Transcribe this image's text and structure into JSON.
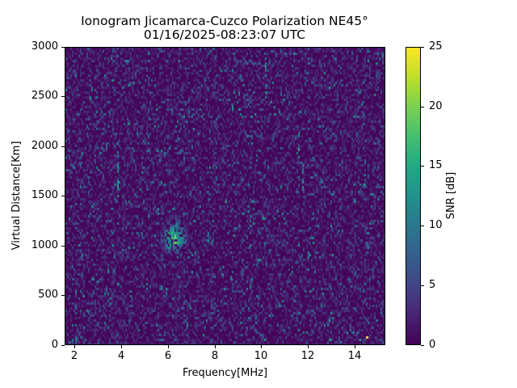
{
  "header": {
    "title_line1": "Ionogram Jicamarca-Cuzco Polarization NE45°",
    "title_line2": "01/16/2025-08:23:07 UTC"
  },
  "axes": {
    "xlabel": "Frequency[MHz]",
    "ylabel": "Virtual Distance[Km]",
    "xticks": [
      "2",
      "4",
      "6",
      "8",
      "10",
      "12",
      "14"
    ],
    "yticks": [
      "0",
      "500",
      "1000",
      "1500",
      "2000",
      "2500",
      "3000"
    ]
  },
  "colorbar": {
    "label": "SNR [dB]",
    "ticks": [
      "0",
      "5",
      "10",
      "15",
      "20",
      "25"
    ]
  },
  "chart_data": {
    "type": "heatmap",
    "title": "Ionogram Jicamarca-Cuzco Polarization NE45° 01/16/2025-08:23:07 UTC",
    "xlabel": "Frequency[MHz]",
    "ylabel": "Virtual Distance[Km]",
    "xlim": [
      1.6,
      15.2
    ],
    "ylim": [
      0,
      3000
    ],
    "xticks": [
      2,
      4,
      6,
      8,
      10,
      12,
      14
    ],
    "yticks": [
      0,
      500,
      1000,
      1500,
      2000,
      2500,
      3000
    ],
    "colorbar": {
      "label": "SNR [dB]",
      "range": [
        0,
        25
      ],
      "ticks": [
        0,
        5,
        10,
        15,
        20,
        25
      ],
      "colormap": "viridis"
    },
    "grid": false,
    "background_noise_snr_db": [
      0,
      8
    ],
    "features": [
      {
        "name": "echo-cluster",
        "freq_mhz": [
          5.6,
          6.8
        ],
        "distance_km": [
          950,
          1300
        ],
        "center": [
          6.2,
          1050
        ],
        "peak_snr_db": 22
      },
      {
        "name": "vertical-streak",
        "freq_mhz": 10.1,
        "distance_km": [
          2500,
          2950
        ],
        "peak_snr_db": 14
      },
      {
        "name": "vertical-streak",
        "freq_mhz": 11.5,
        "distance_km": [
          1850,
          2100
        ],
        "peak_snr_db": 16
      },
      {
        "name": "vertical-streak",
        "freq_mhz": 11.7,
        "distance_km": [
          1550,
          1850
        ],
        "peak_snr_db": 15
      },
      {
        "name": "vertical-streak",
        "freq_mhz": 3.8,
        "distance_km": [
          1500,
          1950
        ],
        "peak_snr_db": 14
      },
      {
        "name": "vertical-streak",
        "freq_mhz": 2.0,
        "distance_km": [
          0,
          600
        ],
        "peak_snr_db": 12
      },
      {
        "name": "vertical-streak",
        "freq_mhz": 9.7,
        "distance_km": [
          100,
          300
        ],
        "peak_snr_db": 12
      },
      {
        "name": "hot-pixel",
        "freq_mhz": 14.4,
        "distance_km": 80,
        "peak_snr_db": 25
      }
    ]
  }
}
